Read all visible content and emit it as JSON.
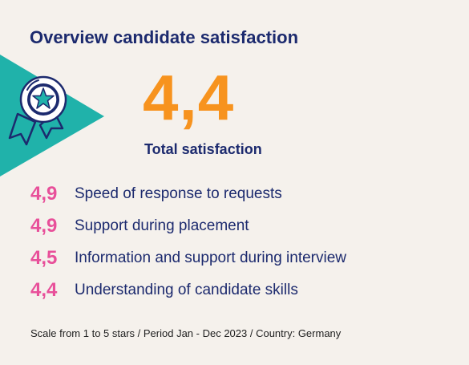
{
  "header": {
    "title": "Overview candidate satisfaction"
  },
  "summary": {
    "score": "4,4",
    "label": "Total satisfaction",
    "icon": "award-ribbon-icon"
  },
  "metrics": [
    {
      "score": "4,9",
      "label": "Speed of response to requests"
    },
    {
      "score": "4,9",
      "label": "Support during placement"
    },
    {
      "score": "4,5",
      "label": "Information and support during interview"
    },
    {
      "score": "4,4",
      "label": "Understanding of candidate skills"
    }
  ],
  "footer": {
    "note": "Scale from 1 to 5 stars / Period Jan - Dec 2023 / Country: Germany"
  },
  "colors": {
    "background": "#f5f1ec",
    "navy": "#1c2a6e",
    "orange": "#f7931e",
    "pink": "#e8509a",
    "teal": "#20b2aa"
  }
}
